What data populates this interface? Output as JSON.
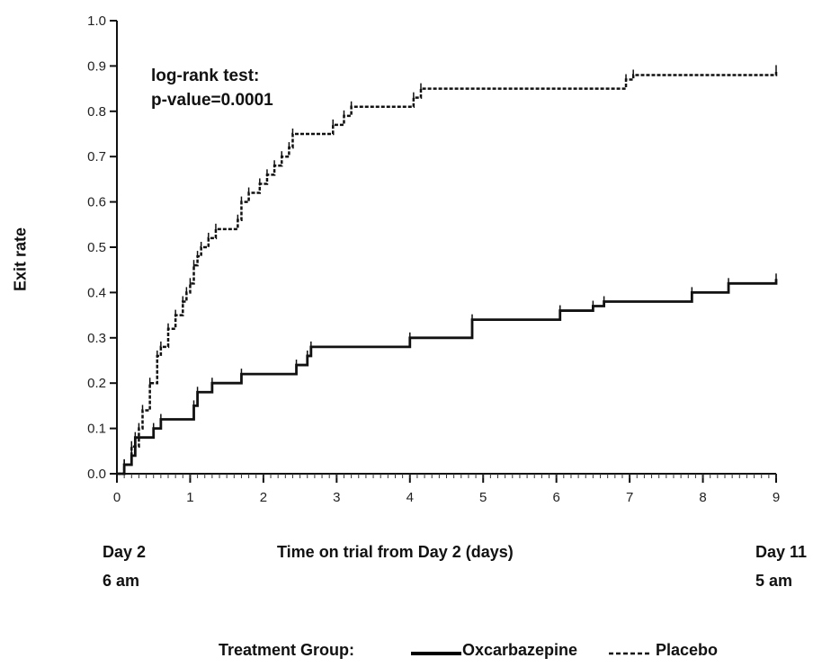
{
  "chart_data": {
    "type": "line",
    "step": true,
    "ylabel": "Exit rate",
    "xlabel": "Time on trial from Day 2 (days)",
    "xlim": [
      0,
      9
    ],
    "ylim": [
      0,
      1.0
    ],
    "x_ticks": [
      "0",
      "1",
      "2",
      "3",
      "4",
      "5",
      "6",
      "7",
      "8",
      "9"
    ],
    "y_ticks": [
      "0.0",
      "0.1",
      "0.2",
      "0.3",
      "0.4",
      "0.5",
      "0.6",
      "0.7",
      "0.8",
      "0.9",
      "1.0"
    ],
    "x_start_label": [
      "Day 2",
      "6 am"
    ],
    "x_end_label": [
      "Day 11",
      "5 am"
    ],
    "annotation": [
      "log-rank test:",
      "p-value=0.0001"
    ],
    "legend": {
      "title": "Treatment Group:",
      "placement": "bottom"
    },
    "series": [
      {
        "name": "Oxcarbazepine",
        "style": "solid",
        "points": [
          [
            0,
            0.0
          ],
          [
            0.1,
            0.02
          ],
          [
            0.2,
            0.04
          ],
          [
            0.25,
            0.08
          ],
          [
            0.5,
            0.1
          ],
          [
            0.6,
            0.12
          ],
          [
            1.05,
            0.15
          ],
          [
            1.1,
            0.18
          ],
          [
            1.3,
            0.2
          ],
          [
            1.7,
            0.22
          ],
          [
            2.45,
            0.24
          ],
          [
            2.6,
            0.26
          ],
          [
            2.65,
            0.28
          ],
          [
            4.0,
            0.3
          ],
          [
            4.85,
            0.34
          ],
          [
            6.05,
            0.36
          ],
          [
            6.5,
            0.37
          ],
          [
            6.65,
            0.38
          ],
          [
            7.85,
            0.4
          ],
          [
            8.35,
            0.42
          ],
          [
            9.0,
            0.43
          ]
        ]
      },
      {
        "name": "Placebo",
        "style": "dashed",
        "points": [
          [
            0,
            0.0
          ],
          [
            0.1,
            0.02
          ],
          [
            0.2,
            0.06
          ],
          [
            0.3,
            0.1
          ],
          [
            0.35,
            0.14
          ],
          [
            0.45,
            0.2
          ],
          [
            0.55,
            0.26
          ],
          [
            0.6,
            0.28
          ],
          [
            0.7,
            0.32
          ],
          [
            0.8,
            0.35
          ],
          [
            0.9,
            0.38
          ],
          [
            0.95,
            0.4
          ],
          [
            1.0,
            0.42
          ],
          [
            1.05,
            0.46
          ],
          [
            1.1,
            0.48
          ],
          [
            1.15,
            0.5
          ],
          [
            1.25,
            0.52
          ],
          [
            1.35,
            0.54
          ],
          [
            1.65,
            0.56
          ],
          [
            1.7,
            0.6
          ],
          [
            1.8,
            0.62
          ],
          [
            1.95,
            0.64
          ],
          [
            2.05,
            0.66
          ],
          [
            2.15,
            0.68
          ],
          [
            2.25,
            0.7
          ],
          [
            2.35,
            0.72
          ],
          [
            2.4,
            0.75
          ],
          [
            2.95,
            0.77
          ],
          [
            3.1,
            0.79
          ],
          [
            3.2,
            0.81
          ],
          [
            4.05,
            0.83
          ],
          [
            4.15,
            0.85
          ],
          [
            6.95,
            0.87
          ],
          [
            7.05,
            0.88
          ],
          [
            9.0,
            0.89
          ]
        ]
      }
    ]
  }
}
